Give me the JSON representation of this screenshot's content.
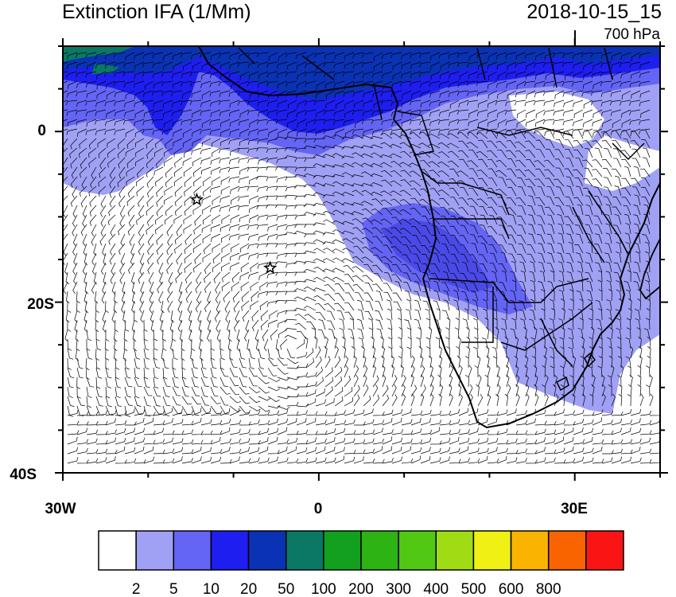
{
  "title": "Extinction IFA (1/Mm)",
  "datetime": "2018-10-15_15",
  "level": "700 hPa",
  "axes": {
    "lat_labels": [
      {
        "lat": 0,
        "label": "0"
      },
      {
        "lat": -20,
        "label": "20S"
      },
      {
        "lat": -40,
        "label": "40S"
      }
    ],
    "lon_labels": [
      {
        "lon": -30,
        "label": "30W"
      },
      {
        "lon": 0,
        "label": "0"
      },
      {
        "lon": 30,
        "label": "30E"
      }
    ],
    "lon_range": [
      -30,
      40
    ],
    "lat_range": [
      -40,
      10
    ]
  },
  "colorbar": {
    "levels": [
      "2",
      "5",
      "10",
      "20",
      "50",
      "100",
      "200",
      "300",
      "400",
      "500",
      "600",
      "800"
    ],
    "colors": [
      "#ffffff",
      "#a0a0f5",
      "#6464f5",
      "#1e1ef0",
      "#0a32b4",
      "#0a7864",
      "#12a01e",
      "#2db414",
      "#50c814",
      "#a0dc14",
      "#f0f014",
      "#fab400",
      "#fa6400",
      "#fa1414"
    ]
  },
  "markers": [
    {
      "name": "star-1",
      "lon": -14.3,
      "lat": -8
    },
    {
      "name": "star-2",
      "lon": -5.7,
      "lat": -16
    }
  ]
}
